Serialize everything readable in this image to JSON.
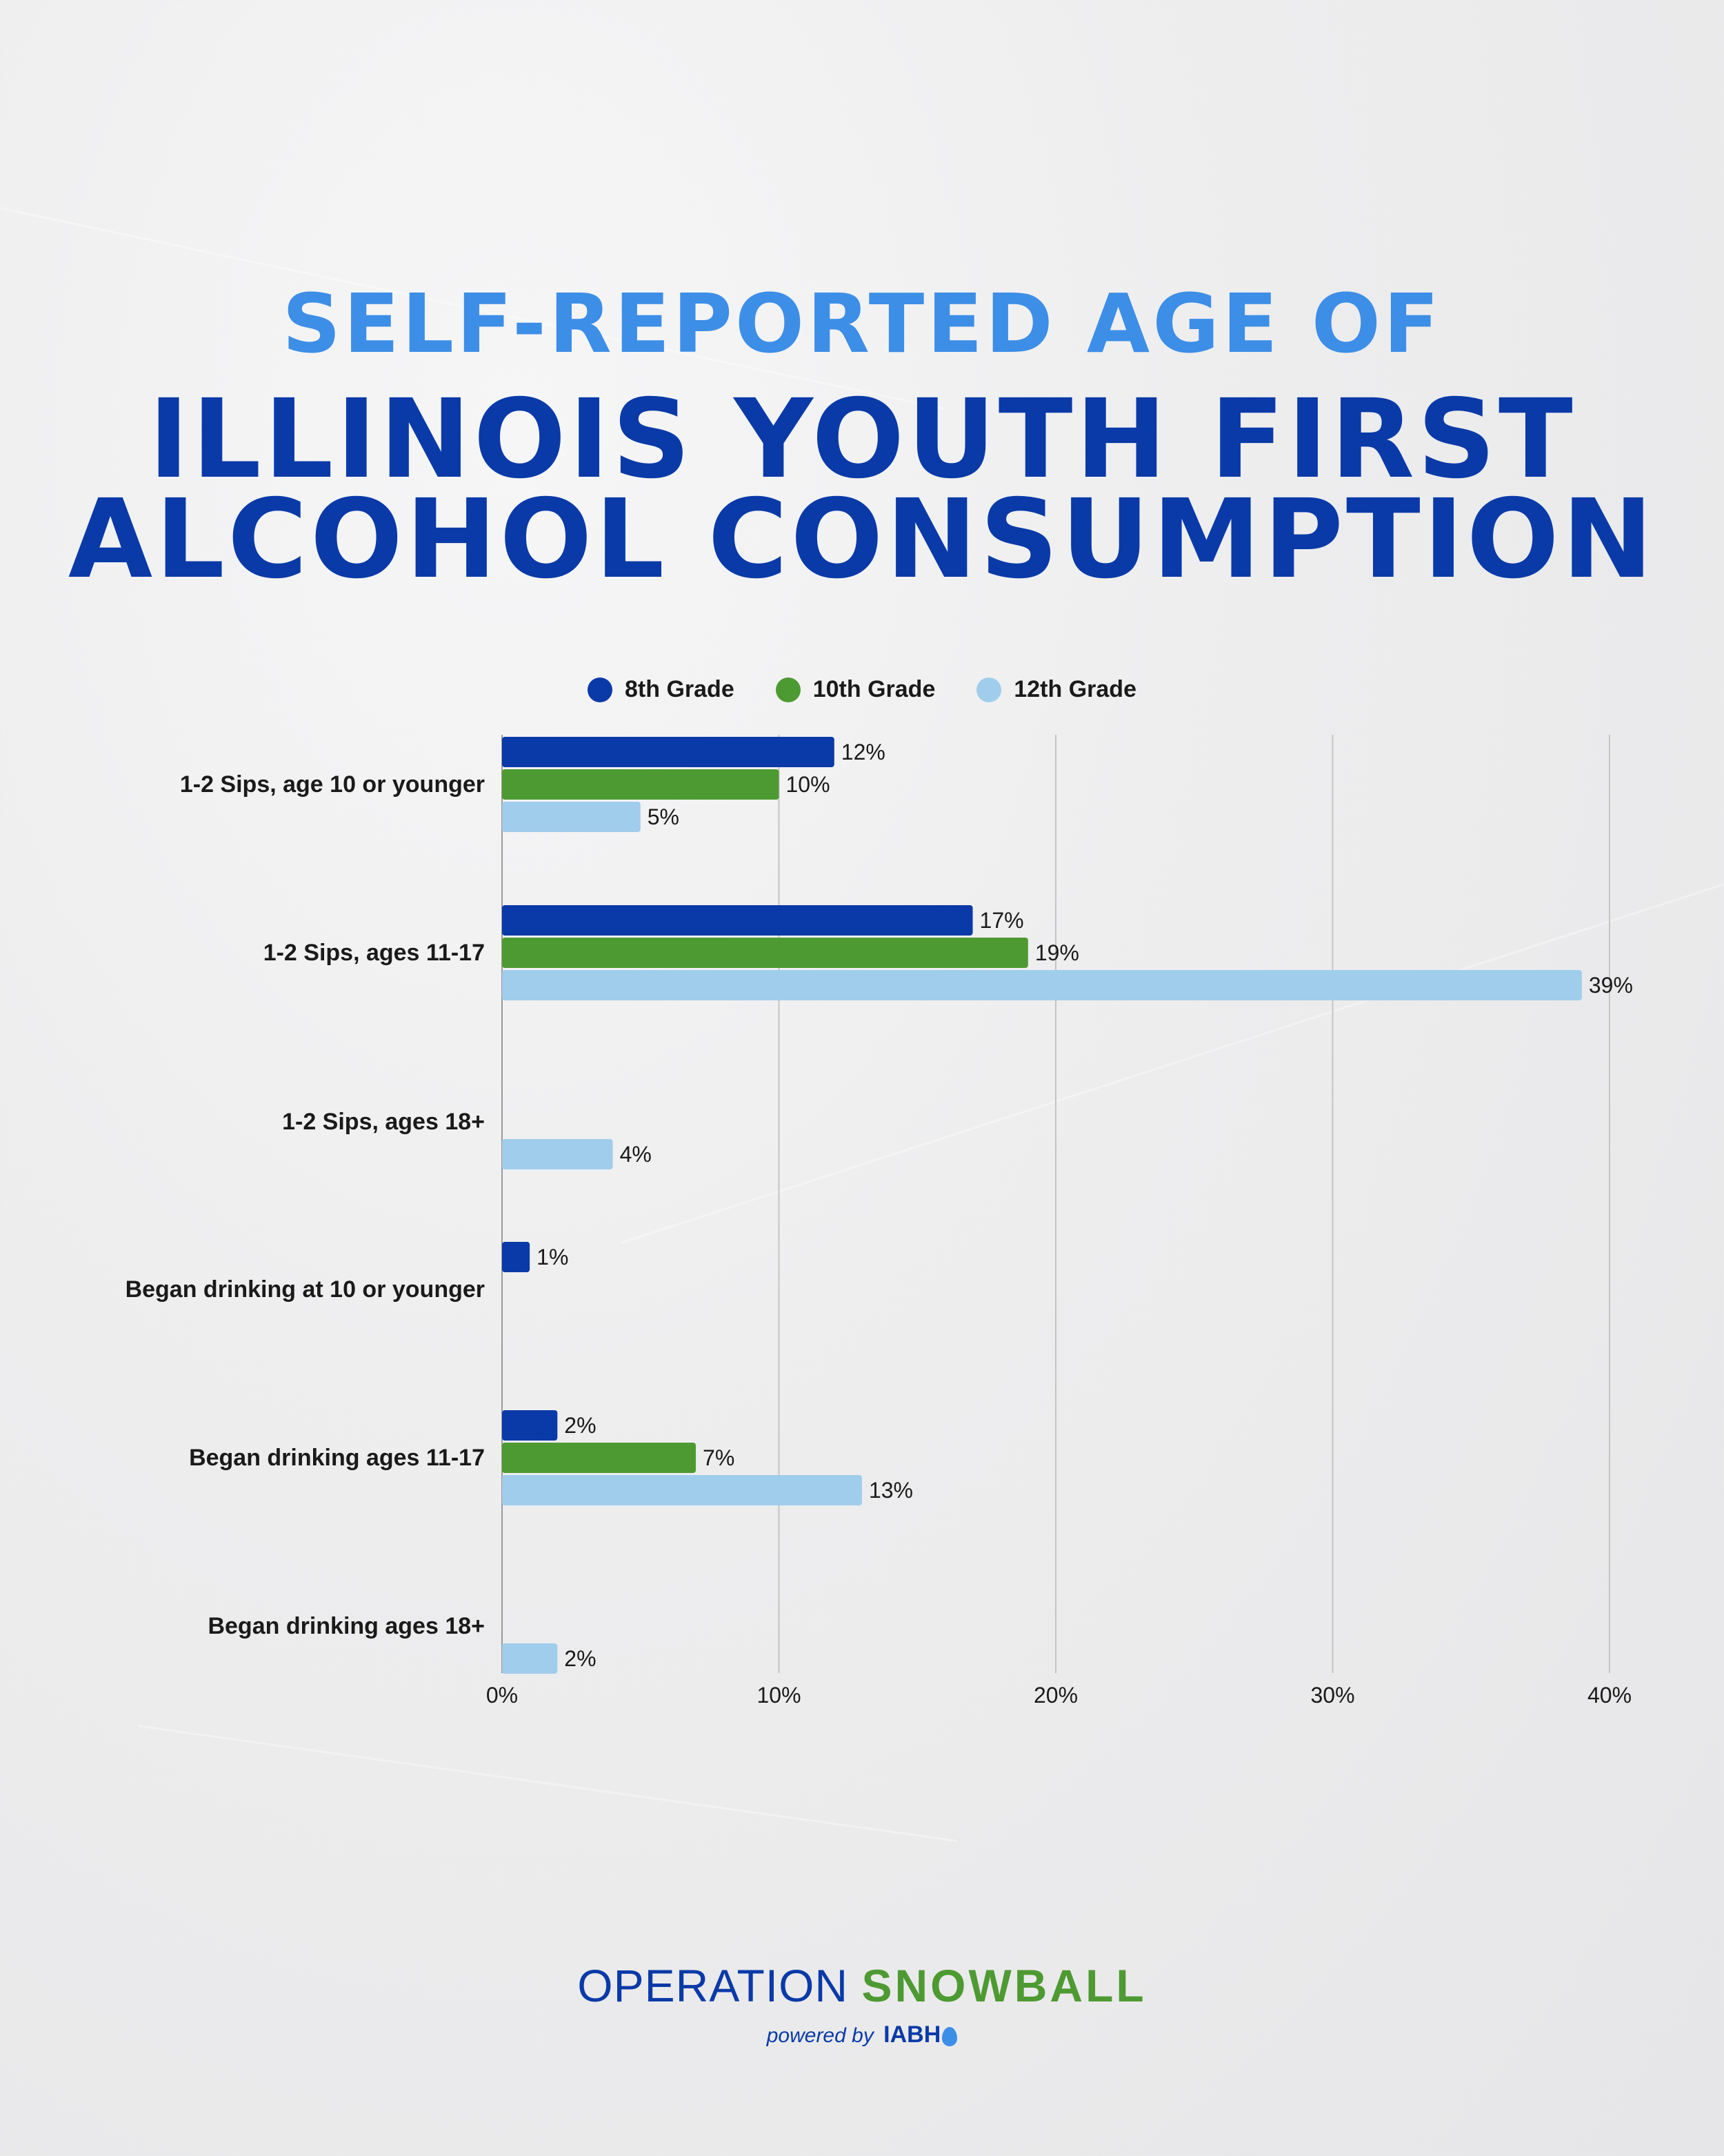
{
  "title": {
    "line1": "SELF-REPORTED AGE OF",
    "line2": "ILLINOIS YOUTH FIRST",
    "line3": "ALCOHOL CONSUMPTION"
  },
  "colors": {
    "grade8": "#0a3aa8",
    "grade10": "#4e9a32",
    "grade12": "#a0cdec",
    "title_light": "#3d8ee6",
    "grid": "#c4c4c4"
  },
  "footer": {
    "brand_part1": "OPERATION ",
    "brand_part2": "SNOWBALL",
    "powered_by": "powered by",
    "org": "IABH"
  },
  "chart_data": {
    "type": "bar",
    "orientation": "horizontal",
    "categories": [
      "1-2 Sips, age 10 or younger",
      "1-2 Sips, ages 11-17",
      "1-2 Sips, ages 18+",
      "Began drinking at 10 or younger",
      "Began drinking ages 11-17",
      "Began drinking ages 18+"
    ],
    "series": [
      {
        "name": "8th Grade",
        "color": "#0a3aa8",
        "values": [
          12,
          17,
          null,
          1,
          2,
          null
        ],
        "labels": [
          "12%",
          "17%",
          "",
          "1%",
          "2%",
          ""
        ]
      },
      {
        "name": "10th Grade",
        "color": "#4e9a32",
        "values": [
          10,
          19,
          null,
          null,
          7,
          null
        ],
        "labels": [
          "10%",
          "19%",
          "",
          "",
          "7%",
          ""
        ]
      },
      {
        "name": "12th Grade",
        "color": "#a0cdec",
        "values": [
          5,
          39,
          4,
          null,
          13,
          2
        ],
        "labels": [
          "5%",
          "39%",
          "4%",
          "",
          "13%",
          "2%"
        ]
      }
    ],
    "xlim": [
      0,
      40
    ],
    "xticks": [
      "0%",
      "10%",
      "20%",
      "30%",
      "40%"
    ],
    "grid": true,
    "legend": "top-center"
  }
}
